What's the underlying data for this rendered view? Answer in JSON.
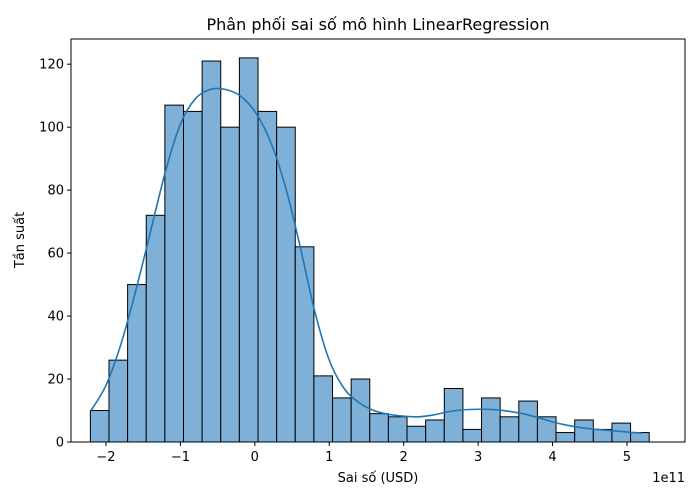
{
  "chart_data": {
    "type": "bar",
    "subtype": "histogram-with-kde",
    "title": "Phân phối sai số mô hình LinearRegression",
    "xlabel": "Sai số (USD)",
    "ylabel": "Tần suất",
    "x_offset_text": "1e11",
    "x_scale_factor": 100000000000,
    "xlim": [
      -2.47,
      5.78
    ],
    "ylim": [
      0,
      128
    ],
    "grid": false,
    "legend": "none",
    "x_ticks": [
      {
        "value": -2,
        "label": "−2"
      },
      {
        "value": -1,
        "label": "−1"
      },
      {
        "value": 0,
        "label": "0"
      },
      {
        "value": 1,
        "label": "1"
      },
      {
        "value": 2,
        "label": "2"
      },
      {
        "value": 3,
        "label": "3"
      },
      {
        "value": 4,
        "label": "4"
      },
      {
        "value": 5,
        "label": "5"
      }
    ],
    "y_ticks": [
      {
        "value": 0,
        "label": "0"
      },
      {
        "value": 20,
        "label": "20"
      },
      {
        "value": 40,
        "label": "40"
      },
      {
        "value": 60,
        "label": "60"
      },
      {
        "value": 80,
        "label": "80"
      },
      {
        "value": 100,
        "label": "100"
      },
      {
        "value": 120,
        "label": "120"
      }
    ],
    "bin_start": -2.21,
    "bin_width": 0.2503,
    "counts": [
      10,
      26,
      50,
      72,
      107,
      105,
      121,
      100,
      122,
      105,
      100,
      62,
      21,
      14,
      20,
      9,
      8,
      5,
      7,
      17,
      4,
      14,
      8,
      13,
      8,
      3,
      7,
      4,
      6,
      3
    ],
    "kde": {
      "x": [
        -2.2,
        -2.0,
        -1.8,
        -1.6,
        -1.4,
        -1.2,
        -1.0,
        -0.8,
        -0.6,
        -0.4,
        -0.2,
        0.0,
        0.2,
        0.4,
        0.6,
        0.8,
        1.0,
        1.2,
        1.4,
        1.6,
        1.8,
        2.0,
        2.2,
        2.4,
        2.6,
        2.8,
        3.0,
        3.2,
        3.4,
        3.6,
        3.8,
        4.0,
        4.2,
        4.4,
        4.6,
        4.8,
        5.0,
        5.2
      ],
      "y": [
        10,
        18,
        31,
        48,
        67,
        86,
        101,
        109,
        112,
        112,
        110,
        105,
        96,
        82,
        63,
        42,
        26,
        17,
        12.5,
        10,
        8.8,
        8.2,
        8.0,
        8.6,
        9.6,
        10.2,
        10.4,
        10.3,
        9.8,
        9.0,
        7.8,
        6.4,
        5.3,
        4.5,
        4.0,
        3.6,
        3.2,
        2.8
      ]
    },
    "colors": {
      "bar_fill": "#7fb0d7",
      "bar_edge": "#000000",
      "kde_line": "#1f77b4"
    }
  }
}
